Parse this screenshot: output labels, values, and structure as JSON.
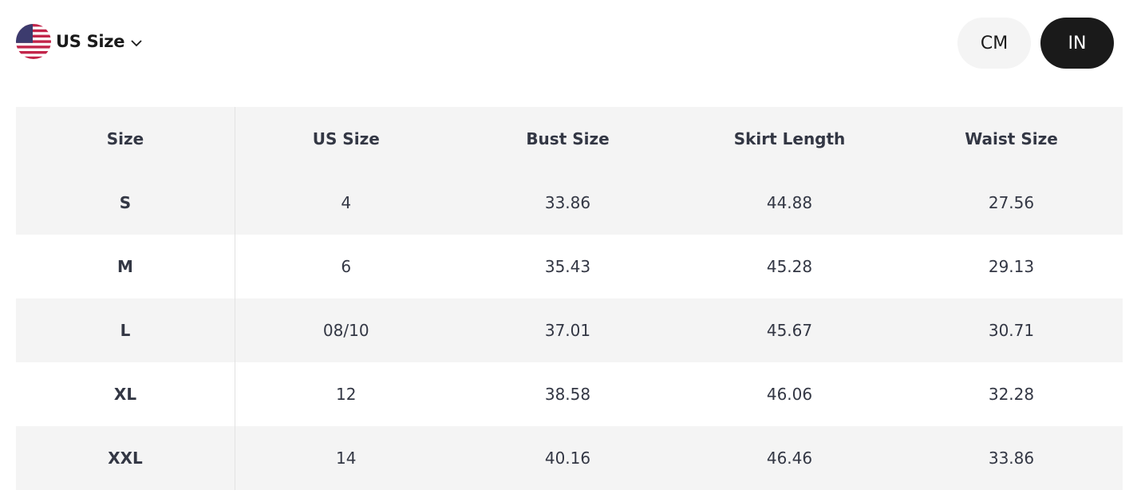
{
  "region": {
    "label": "US Size",
    "flag_icon": "us-flag-icon",
    "chevron_icon": "chevron-down-icon"
  },
  "units": {
    "cm_label": "CM",
    "in_label": "IN",
    "selected": "IN"
  },
  "table": {
    "headers": [
      "Size",
      "US Size",
      "Bust Size",
      "Skirt Length",
      "Waist Size"
    ],
    "rows": [
      [
        "S",
        "4",
        "33.86",
        "44.88",
        "27.56"
      ],
      [
        "M",
        "6",
        "35.43",
        "45.28",
        "29.13"
      ],
      [
        "L",
        "08/10",
        "37.01",
        "45.67",
        "30.71"
      ],
      [
        "XL",
        "12",
        "38.58",
        "46.06",
        "32.28"
      ],
      [
        "XXL",
        "14",
        "40.16",
        "46.46",
        "33.86"
      ]
    ]
  }
}
